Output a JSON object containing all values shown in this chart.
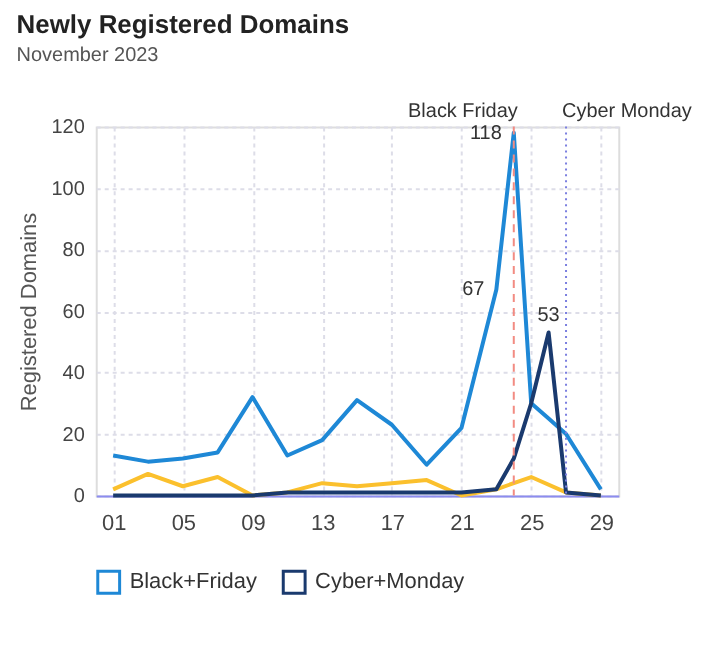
{
  "chart_data": {
    "type": "line",
    "title": "Newly Registered Domains",
    "subtitle": "November 2023",
    "ylabel": "Registered Domains",
    "xlim": [
      0,
      30
    ],
    "xticks": [
      {
        "value": 1,
        "label": "01"
      },
      {
        "value": 5,
        "label": "05"
      },
      {
        "value": 9,
        "label": "09"
      },
      13,
      17,
      21,
      25,
      29
    ],
    "ylim": [
      0,
      120
    ],
    "yticks": [
      0,
      20,
      40,
      60,
      80,
      100,
      120
    ],
    "grid": true,
    "legend": "bottom",
    "marker": "none",
    "line_style": "solid",
    "series": [
      {
        "color": "#fbc02d",
        "x": [
          1,
          3,
          5,
          7,
          9,
          11,
          13,
          15,
          17,
          19,
          21,
          23,
          25,
          27,
          29
        ],
        "values": [
          2,
          7,
          3,
          6,
          0,
          1,
          4,
          3,
          4,
          5,
          0,
          2,
          6,
          1,
          0
        ]
      },
      {
        "name": "Black+Friday",
        "color": "#1e88d6",
        "x": [
          1,
          3,
          5,
          7,
          9,
          11,
          13,
          15,
          17,
          19,
          21,
          23,
          24,
          25,
          26,
          27,
          29
        ],
        "values": [
          13,
          11,
          12,
          14,
          32,
          13,
          18,
          31,
          23,
          10,
          22,
          67,
          118,
          30,
          25,
          20,
          2
        ],
        "value_labels": [
          null,
          null,
          null,
          null,
          null,
          null,
          null,
          null,
          null,
          null,
          null,
          "67",
          "118",
          null,
          null,
          null,
          null
        ]
      },
      {
        "name": "Cyber+Monday",
        "color": "#1a3a6e",
        "x": [
          1,
          3,
          5,
          7,
          9,
          11,
          13,
          15,
          17,
          19,
          21,
          23,
          24,
          25,
          26,
          27,
          29
        ],
        "values": [
          0,
          0,
          0,
          0,
          0,
          1,
          1,
          1,
          1,
          1,
          1,
          2,
          12,
          30,
          53,
          1,
          0
        ],
        "value_labels": [
          null,
          null,
          null,
          null,
          null,
          null,
          null,
          null,
          null,
          null,
          null,
          null,
          null,
          null,
          "53",
          null,
          null
        ]
      }
    ],
    "ref_lines": [
      {
        "axis": "x",
        "value": 24,
        "label": "Black Friday",
        "color": "#f28b82",
        "line_style": "dashed"
      },
      {
        "axis": "x",
        "value": 27,
        "label": "Cyber Monday",
        "color": "#7b7fe0",
        "line_style": "dotted"
      }
    ]
  }
}
